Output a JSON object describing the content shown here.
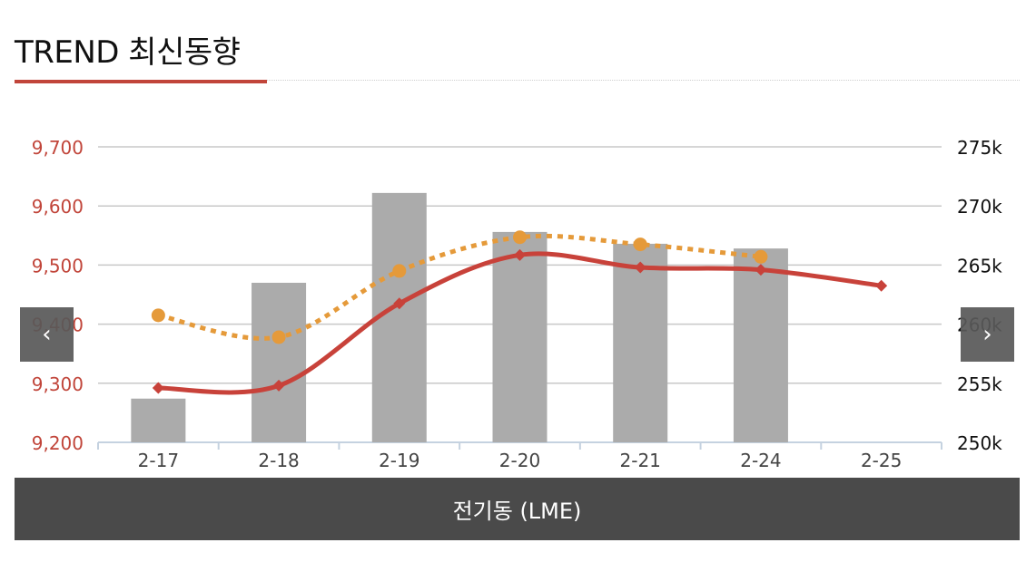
{
  "page": {
    "title": "TREND 최신동향"
  },
  "nav": {
    "prev_icon": "‹",
    "next_icon": "›"
  },
  "footer": {
    "label": "전기동 (LME)"
  },
  "colors": {
    "accent": "#c1453a",
    "bars": "#ababab",
    "dotted_series": "#e59a3a",
    "solid_series": "#c8423a"
  },
  "chart_data": {
    "type": "bar+line",
    "categories": [
      "2-17",
      "2-18",
      "2-19",
      "2-20",
      "2-21",
      "2-24",
      "2-25"
    ],
    "y_left": {
      "ticks": [
        "9,200",
        "9,300",
        "9,400",
        "9,500",
        "9,600",
        "9,700"
      ],
      "range": [
        9200,
        9700
      ],
      "color": "#c1453a"
    },
    "y_right": {
      "ticks": [
        "250k",
        "255k",
        "260k",
        "265k",
        "270k",
        "275k"
      ],
      "range": [
        250000,
        275000
      ]
    },
    "series": [
      {
        "type": "bar",
        "axis": "right",
        "values": [
          253700,
          263500,
          271100,
          267800,
          266800,
          266400,
          null
        ]
      },
      {
        "type": "line",
        "style": "dotted",
        "marker": "circle",
        "axis": "left",
        "values": [
          9415,
          9378,
          9490,
          9547,
          9535,
          9514,
          null
        ]
      },
      {
        "type": "line",
        "style": "solid",
        "marker": "diamond",
        "axis": "left",
        "values": [
          9292,
          9296,
          9435,
          9517,
          9496,
          9492,
          9465
        ]
      }
    ],
    "grid": true
  }
}
